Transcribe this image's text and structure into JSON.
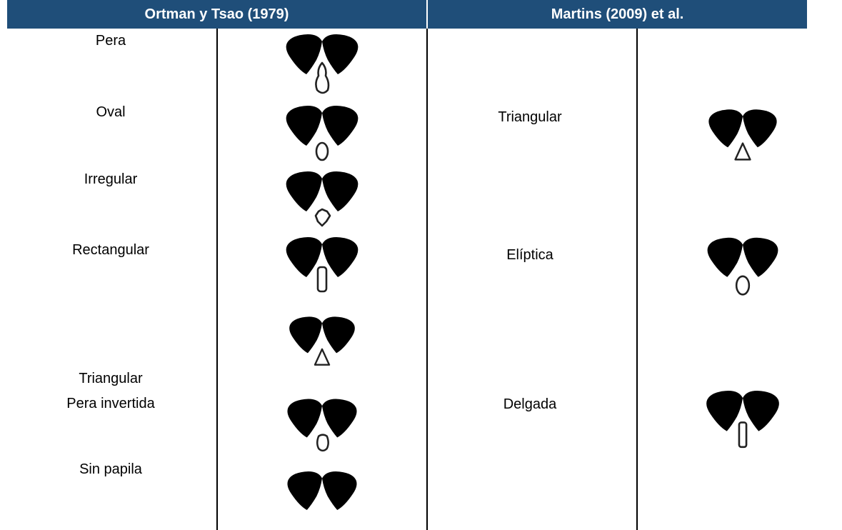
{
  "header": {
    "left": "Ortman y Tsao (1979)",
    "right": "Martins (2009) et al."
  },
  "left_rows": [
    "Pera",
    "Oval",
    "Irregular",
    "Rectangular",
    "Triangular",
    "Pera invertida",
    "Sin papila"
  ],
  "right_rows": [
    "Triangular",
    "Elíptica",
    "Delgada"
  ]
}
